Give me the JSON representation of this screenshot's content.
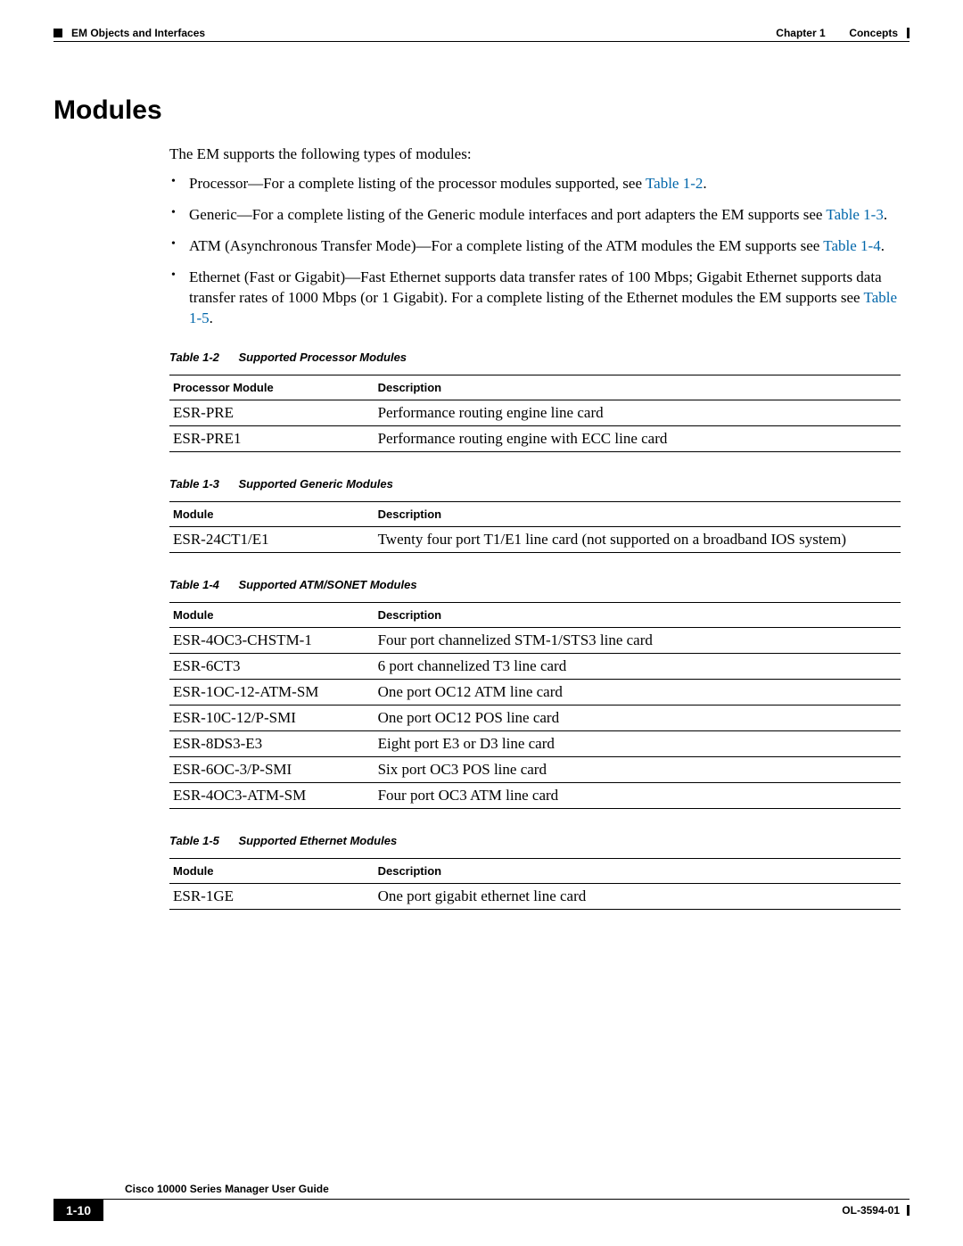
{
  "header": {
    "chapter_label": "Chapter 1",
    "chapter_title": "Concepts",
    "section_path": "EM Objects and Interfaces"
  },
  "section": {
    "title": "Modules",
    "intro": "The EM supports the following types of modules:",
    "bullets": [
      {
        "prefix": "Processor—For a complete listing of the processor modules supported, see ",
        "xref": "Table 1-2",
        "suffix": "."
      },
      {
        "prefix": "Generic—For a complete listing of the Generic module interfaces and port adapters the EM supports see ",
        "xref": "Table 1-3",
        "suffix": "."
      },
      {
        "prefix": "ATM (Asynchronous Transfer Mode)—For a complete listing of the ATM modules the EM supports see ",
        "xref": "Table 1-4",
        "suffix": "."
      },
      {
        "prefix": "Ethernet (Fast or Gigabit)—Fast Ethernet supports data transfer rates of 100 Mbps; Gigabit Ethernet supports data transfer rates of 1000 Mbps (or 1 Gigabit). For a complete listing of the Ethernet modules the EM supports see ",
        "xref": "Table 1-5",
        "suffix": "."
      }
    ]
  },
  "tables": [
    {
      "num": "Table 1-2",
      "title": "Supported Processor Modules",
      "col1": "Processor Module",
      "col2": "Description",
      "rows": [
        {
          "c1": "ESR-PRE",
          "c2": "Performance routing engine line card"
        },
        {
          "c1": "ESR-PRE1",
          "c2": "Performance routing engine with ECC line card"
        }
      ]
    },
    {
      "num": "Table 1-3",
      "title": "Supported Generic Modules",
      "col1": "Module",
      "col2": "Description",
      "rows": [
        {
          "c1": "ESR-24CT1/E1",
          "c2": "Twenty four port T1/E1 line card (not supported on a broadband IOS system)"
        }
      ]
    },
    {
      "num": "Table 1-4",
      "title": "Supported ATM/SONET Modules",
      "col1": "Module",
      "col2": "Description",
      "rows": [
        {
          "c1": "ESR-4OC3-CHSTM-1",
          "c2": "Four port channelized STM-1/STS3 line card"
        },
        {
          "c1": "ESR-6CT3",
          "c2": "6 port channelized T3 line card"
        },
        {
          "c1": "ESR-1OC-12-ATM-SM",
          "c2": "One port OC12 ATM line card"
        },
        {
          "c1": "ESR-10C-12/P-SMI",
          "c2": "One port OC12 POS line card"
        },
        {
          "c1": "ESR-8DS3-E3",
          "c2": "Eight port E3 or D3 line card"
        },
        {
          "c1": "ESR-6OC-3/P-SMI",
          "c2": "Six port OC3 POS line card"
        },
        {
          "c1": "ESR-4OC3-ATM-SM",
          "c2": "Four port OC3 ATM line card"
        }
      ]
    },
    {
      "num": "Table 1-5",
      "title": "Supported Ethernet Modules",
      "col1": "Module",
      "col2": "Description",
      "rows": [
        {
          "c1": "ESR-1GE",
          "c2": "One port gigabit ethernet line card"
        }
      ]
    }
  ],
  "footer": {
    "book_title": "Cisco 10000 Series Manager User Guide",
    "page_number": "1-10",
    "doc_id": "OL-3594-01"
  },
  "colors": {
    "text": "#000000",
    "link": "#0066aa",
    "background": "#ffffff"
  }
}
